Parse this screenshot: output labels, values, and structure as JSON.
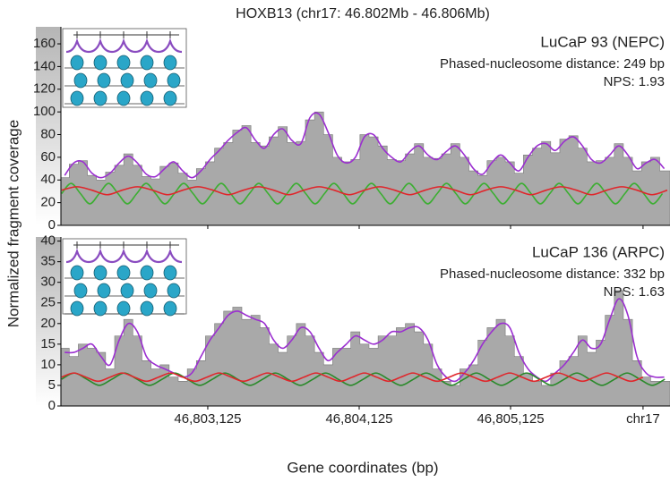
{
  "figure": {
    "title": "HOXB13 (chr17: 46.802Mb - 46.806Mb)",
    "xlabel": "Gene coordinates (bp)",
    "ylabel": "Normalized fragment coverage",
    "xlim": [
      46802155,
      46806178
    ],
    "xticks": [
      {
        "value": 46803125,
        "label": "46,803,125"
      },
      {
        "value": 46804125,
        "label": "46,804,125"
      },
      {
        "value": 46805125,
        "label": "46,805,125"
      },
      {
        "value": 46806000,
        "label": "chr17"
      }
    ]
  },
  "chart_data": [
    {
      "type": "line",
      "label": "LuCaP 93 (NEPC)",
      "annotations": [
        "Phased-nucleosome distance: 249 bp",
        "NPS: 1.93"
      ],
      "ylim": [
        0,
        175
      ],
      "yticks": [
        0,
        20,
        40,
        60,
        80,
        100,
        120,
        140,
        160
      ],
      "x": [
        46802180,
        46802240,
        46802300,
        46802360,
        46802420,
        46802480,
        46802540,
        46802600,
        46802660,
        46802720,
        46802780,
        46802840,
        46802900,
        46802960,
        46803020,
        46803080,
        46803140,
        46803200,
        46803260,
        46803320,
        46803380,
        46803440,
        46803500,
        46803560,
        46803620,
        46803680,
        46803740,
        46803800,
        46803860,
        46803920,
        46803980,
        46804040,
        46804100,
        46804160,
        46804220,
        46804280,
        46804340,
        46804400,
        46804460,
        46804520,
        46804580,
        46804640,
        46804700,
        46804760,
        46804820,
        46804880,
        46804940,
        46805000,
        46805060,
        46805120,
        46805180,
        46805240,
        46805300,
        46805360,
        46805420,
        46805480,
        46805540,
        46805600,
        46805660,
        46805720,
        46805780,
        46805840,
        46805900,
        46805960,
        46806020,
        46806080,
        46806140
      ],
      "series": [
        {
          "style": "area",
          "color": "#a9a9a9",
          "values": [
            42,
            54,
            57,
            44,
            40,
            47,
            53,
            63,
            53,
            43,
            41,
            52,
            55,
            46,
            40,
            50,
            56,
            68,
            73,
            84,
            88,
            73,
            70,
            78,
            87,
            73,
            74,
            93,
            100,
            80,
            60,
            56,
            58,
            80,
            78,
            70,
            58,
            57,
            63,
            72,
            60,
            59,
            63,
            72,
            60,
            48,
            44,
            57,
            60,
            56,
            46,
            62,
            68,
            74,
            64,
            76,
            79,
            68,
            56,
            57,
            60,
            72,
            60,
            48,
            56,
            60,
            48
          ]
        },
        {
          "style": "line",
          "color": "#9b2fd0",
          "values": [
            44,
            55,
            56,
            46,
            42,
            46,
            55,
            61,
            55,
            45,
            43,
            50,
            56,
            48,
            42,
            48,
            58,
            66,
            75,
            82,
            86,
            75,
            68,
            80,
            85,
            75,
            72,
            95,
            98,
            82,
            62,
            55,
            60,
            78,
            80,
            68,
            60,
            56,
            65,
            70,
            62,
            58,
            65,
            70,
            62,
            50,
            45,
            55,
            62,
            55,
            48,
            60,
            70,
            72,
            66,
            74,
            78,
            70,
            58,
            55,
            62,
            70,
            62,
            50,
            55,
            58,
            50
          ]
        },
        {
          "style": "line",
          "color": "#3cae32",
          "x": [
            46802160,
            46802222,
            46802284,
            46802346,
            46802408,
            46802470,
            46802532,
            46802594,
            46802656,
            46802718,
            46802780,
            46802842,
            46802904,
            46802966,
            46803028,
            46803090,
            46803152,
            46803214,
            46803276,
            46803338,
            46803400,
            46803462,
            46803524,
            46803586,
            46803648,
            46803710,
            46803772,
            46803834,
            46803896,
            46803958,
            46804020,
            46804082,
            46804144,
            46804206,
            46804268,
            46804330,
            46804392,
            46804454,
            46804516,
            46804578,
            46804640,
            46804702,
            46804764,
            46804826,
            46804888,
            46804950,
            46805012,
            46805074,
            46805136,
            46805198,
            46805260,
            46805322,
            46805384,
            46805446,
            46805508,
            46805570,
            46805632,
            46805694,
            46805756,
            46805818,
            46805880,
            46805942,
            46806004,
            46806066,
            46806128
          ],
          "values": [
            28,
            37,
            28,
            19,
            28,
            37,
            28,
            19,
            28,
            37,
            28,
            19,
            28,
            37,
            28,
            19,
            28,
            37,
            28,
            19,
            28,
            37,
            28,
            19,
            28,
            37,
            28,
            19,
            28,
            37,
            28,
            19,
            28,
            37,
            28,
            19,
            28,
            37,
            28,
            19,
            28,
            37,
            28,
            19,
            28,
            37,
            28,
            19,
            28,
            37,
            28,
            19,
            28,
            37,
            28,
            19,
            28,
            37,
            28,
            19,
            28,
            37,
            28,
            19,
            28
          ]
        },
        {
          "style": "line",
          "color": "#e0262b",
          "x": [
            46802160,
            46802260,
            46802360,
            46802460,
            46802560,
            46802660,
            46802760,
            46802860,
            46802960,
            46803060,
            46803160,
            46803260,
            46803360,
            46803460,
            46803560,
            46803660,
            46803760,
            46803860,
            46803960,
            46804060,
            46804160,
            46804260,
            46804360,
            46804460,
            46804560,
            46804660,
            46804760,
            46804860,
            46804960,
            46805060,
            46805160,
            46805260,
            46805360,
            46805460,
            46805560,
            46805660,
            46805760,
            46805860,
            46805960,
            46806060,
            46806160
          ],
          "values": [
            31,
            34,
            31,
            27,
            31,
            34,
            31,
            27,
            31,
            34,
            31,
            27,
            31,
            34,
            31,
            27,
            31,
            34,
            31,
            27,
            31,
            34,
            31,
            27,
            31,
            34,
            31,
            27,
            31,
            34,
            31,
            27,
            31,
            34,
            31,
            27,
            31,
            34,
            31,
            27,
            31
          ]
        }
      ]
    },
    {
      "type": "line",
      "label": "LuCaP 136 (ARPC)",
      "annotations": [
        "Phased-nucleosome distance: 332 bp",
        "NPS: 1.63"
      ],
      "ylim": [
        0,
        41
      ],
      "yticks": [
        0,
        5,
        10,
        15,
        20,
        25,
        30,
        35,
        40
      ],
      "x": [
        46802180,
        46802240,
        46802300,
        46802360,
        46802420,
        46802480,
        46802540,
        46802600,
        46802660,
        46802720,
        46802780,
        46802840,
        46802900,
        46802960,
        46803020,
        46803080,
        46803140,
        46803200,
        46803260,
        46803320,
        46803380,
        46803440,
        46803500,
        46803560,
        46803620,
        46803680,
        46803740,
        46803800,
        46803860,
        46803920,
        46803980,
        46804040,
        46804100,
        46804160,
        46804220,
        46804280,
        46804340,
        46804400,
        46804460,
        46804520,
        46804580,
        46804640,
        46804700,
        46804760,
        46804820,
        46804880,
        46804940,
        46805000,
        46805060,
        46805120,
        46805180,
        46805240,
        46805300,
        46805360,
        46805420,
        46805480,
        46805540,
        46805600,
        46805660,
        46805720,
        46805780,
        46805840,
        46805900,
        46805960,
        46806020,
        46806080,
        46806140
      ],
      "series": [
        {
          "style": "area",
          "color": "#a9a9a9",
          "values": [
            14,
            12,
            15,
            14,
            13,
            9,
            17,
            21,
            17,
            11,
            9,
            10,
            7,
            6,
            9,
            11,
            17,
            20,
            23,
            24,
            21,
            22,
            19,
            15,
            13,
            17,
            20,
            17,
            13,
            10,
            14,
            14,
            18,
            15,
            14,
            17,
            17,
            19,
            20,
            18,
            15,
            9,
            6,
            5,
            9,
            10,
            16,
            19,
            21,
            17,
            12,
            8,
            6,
            5,
            8,
            11,
            12,
            17,
            13,
            16,
            22,
            28,
            21,
            11,
            7,
            6,
            6
          ]
        },
        {
          "style": "line",
          "color": "#9b2fd0",
          "values": [
            13,
            13,
            14,
            15,
            12,
            10,
            16,
            20,
            18,
            12,
            10,
            9,
            8,
            7,
            8,
            12,
            16,
            19,
            22,
            23,
            22,
            21,
            20,
            16,
            14,
            16,
            19,
            18,
            14,
            11,
            13,
            15,
            17,
            16,
            15,
            16,
            18,
            18,
            19,
            19,
            16,
            10,
            7,
            6,
            8,
            11,
            15,
            18,
            20,
            19,
            13,
            9,
            7,
            6,
            8,
            10,
            13,
            16,
            14,
            15,
            21,
            26,
            22,
            12,
            8,
            7,
            7
          ]
        },
        {
          "style": "line",
          "color": "#2a8a2a",
          "x": [
            46802160,
            46802243,
            46802326,
            46802409,
            46802492,
            46802575,
            46802658,
            46802741,
            46802824,
            46802907,
            46802990,
            46803073,
            46803156,
            46803239,
            46803322,
            46803405,
            46803488,
            46803571,
            46803654,
            46803737,
            46803820,
            46803903,
            46803986,
            46804069,
            46804152,
            46804235,
            46804318,
            46804401,
            46804484,
            46804567,
            46804650,
            46804733,
            46804816,
            46804899,
            46804982,
            46805065,
            46805148,
            46805231,
            46805314,
            46805397,
            46805480,
            46805563,
            46805646,
            46805729,
            46805812,
            46805895,
            46805978,
            46806061,
            46806144
          ],
          "values": [
            6.5,
            8,
            6.5,
            5,
            6.5,
            8,
            6.5,
            5,
            6.5,
            8,
            6.5,
            5,
            6.5,
            8,
            6.5,
            5,
            6.5,
            8,
            6.5,
            5,
            6.5,
            8,
            6.5,
            5,
            6.5,
            8,
            6.5,
            5,
            6.5,
            8,
            6.5,
            5,
            6.5,
            8,
            6.5,
            5,
            6.5,
            8,
            6.5,
            5,
            6.5,
            8,
            6.5,
            5,
            6.5,
            8,
            6.5,
            5,
            6.5
          ]
        },
        {
          "style": "line",
          "color": "#e0262b",
          "x": [
            46802160,
            46802240,
            46802320,
            46802400,
            46802480,
            46802560,
            46802640,
            46802720,
            46802800,
            46802880,
            46802960,
            46803040,
            46803120,
            46803200,
            46803280,
            46803360,
            46803440,
            46803520,
            46803600,
            46803680,
            46803760,
            46803840,
            46803920,
            46804000,
            46804080,
            46804160,
            46804240,
            46804320,
            46804400,
            46804480,
            46804560,
            46804640,
            46804720,
            46804800,
            46804880,
            46804960,
            46805040,
            46805120,
            46805200,
            46805280,
            46805360,
            46805440,
            46805520,
            46805600,
            46805680,
            46805760,
            46805840,
            46805920,
            46806000
          ],
          "values": [
            7,
            8,
            7,
            6,
            7,
            8,
            7,
            6,
            7,
            8,
            7,
            6,
            7,
            8,
            7,
            6,
            7,
            8,
            7,
            6,
            7,
            8,
            7,
            6,
            7,
            8,
            7,
            6,
            7,
            8,
            7,
            6,
            7,
            8,
            7,
            6,
            7,
            8,
            7,
            6,
            7,
            8,
            7,
            6,
            7,
            8,
            7,
            6,
            7
          ]
        }
      ]
    }
  ]
}
